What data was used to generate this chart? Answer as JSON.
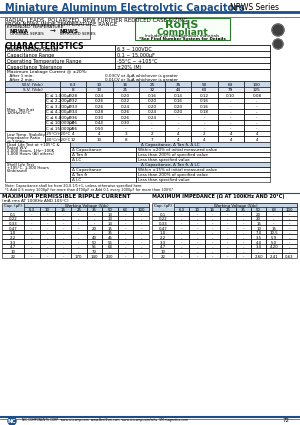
{
  "title": "Miniature Aluminum Electrolytic Capacitors",
  "series": "NRWS Series",
  "subtitle1": "RADIAL LEADS, POLARIZED, NEW FURTHER REDUCED CASE SIZING,",
  "subtitle2": "FROM NRWA WIDE TEMPERATURE RANGE",
  "rohs_line1": "RoHS",
  "rohs_line2": "Compliant",
  "rohs_line3": "Includes all homogeneous materials",
  "rohs_line4": "*See Find Number System for Details",
  "ext_temp": "EXTENDED TEMPERATURE",
  "nrwa_label": "NRWA",
  "nrws_label": "NRWS",
  "nrwa_sub": "ORIGINAL SERIES",
  "nrws_sub": "IMPROVED SERIES",
  "char_title": "CHARACTERISTICS",
  "char_rows": [
    [
      "Rated Voltage Range",
      "6.3 ~ 100VDC"
    ],
    [
      "Capacitance Range",
      "0.1 ~ 15,000μF"
    ],
    [
      "Operating Temperature Range",
      "-55°C ~ +105°C"
    ],
    [
      "Capacitance Tolerance",
      "±20% (M)"
    ]
  ],
  "leakage_label": "Maximum Leakage Current @ ±20%:",
  "leakage_after1min": "After 1 min:",
  "leakage_val1": "0.03CV or 4μA whichever is greater",
  "leakage_after2min": "After 2 min:",
  "leakage_val2": "0.01CV or 3μA whichever is greater",
  "tan_label": "Max. Tan δ at 120Hz/20°C",
  "tan_headers": [
    "W.V. (Vdc)",
    "6.3",
    "10",
    "16",
    "25",
    "35",
    "50",
    "63",
    "100"
  ],
  "tan_sv": [
    "S.V. (Vdc)",
    "8",
    "13",
    "21",
    "32",
    "44",
    "63",
    "79",
    "125"
  ],
  "tan_rows": [
    [
      "C ≤ 1,000μF",
      "0.28",
      "0.24",
      "0.20",
      "0.16",
      "0.14",
      "0.12",
      "0.10",
      "0.08"
    ],
    [
      "C ≤ 2,200μF",
      "0.32",
      "0.26",
      "0.22",
      "0.20",
      "0.16",
      "0.16",
      "-",
      "-"
    ],
    [
      "C ≤ 3,300μF",
      "0.33",
      "0.26",
      "0.24",
      "0.20",
      "0.20",
      "0.16",
      "-",
      "-"
    ],
    [
      "C ≤ 4,700μF",
      "0.34",
      "0.28",
      "0.26",
      "0.24",
      "0.20",
      "0.18",
      "-",
      "-"
    ],
    [
      "C ≤ 6,800μF",
      "0.36",
      "0.30",
      "0.26",
      "0.24",
      "-",
      "-",
      "-",
      "-"
    ],
    [
      "C ≤ 10,000μF",
      "0.46",
      "0.44",
      "0.30",
      "-",
      "-",
      "-",
      "-",
      "-"
    ],
    [
      "C ≤ 15,000μF",
      "0.56",
      "0.50",
      "-",
      "-",
      "-",
      "-",
      "-",
      "-"
    ]
  ],
  "low_temp_label": "Low Temperature Stability\nImpedance Ratio @ 120Hz",
  "low_temp_rows": [
    [
      "-25°C/+20°C",
      "4",
      "4",
      "3",
      "2",
      "4",
      "2",
      "4",
      "4"
    ],
    [
      "-40°C/+20°C",
      "12",
      "10",
      "8",
      "7",
      "4",
      "4",
      "4",
      "4"
    ]
  ],
  "load_life_label": "Load Life Test at +105°C & Rated W.V.\n2,000 Hours, 1Hz ~ 100K (by 5%)\n1,000 Hours (All others)",
  "load_life_rows": [
    [
      "Δ Capacitance",
      "Within ±20% of initial measured value"
    ],
    [
      "Δ Tan δ",
      "Less than 200% of specified value"
    ],
    [
      "Δ LC",
      "Less than specified value"
    ]
  ],
  "shelf_label": "Shelf Life Test\n+105°C, 1,000 Hours\n(Unbiased)",
  "shelf_rows": [
    [
      "Δ Capacitance",
      "Within ±15% of initial measured value"
    ],
    [
      "Δ Tan δ",
      "Less than 200% of specified value"
    ],
    [
      "Δ LC",
      "Less than specified value"
    ]
  ],
  "note": "Note: Capacitance shall be from 20-0.1/1+1, unless otherwise specified here.",
  "note2": "*1 Add 0.5 every 1000μF for more than 4700μF or Add 0.1 every 1000μF for more than 100%*",
  "ripple_title": "MAXIMUM PERMISSIBLE RIPPLE CURRENT",
  "ripple_subtitle": "(mA rms AT 100KHz AND 105°C)",
  "ripple_headers": [
    "Cap. (μF)",
    "6.3",
    "10",
    "16",
    "25",
    "35",
    "50",
    "63",
    "100"
  ],
  "ripple_rows": [
    [
      "0.1",
      "-",
      "-",
      "-",
      "-",
      "-",
      "13",
      "-",
      "-"
    ],
    [
      "0.22",
      "-",
      "-",
      "-",
      "-",
      "-",
      "13",
      "-",
      "-"
    ],
    [
      "0.33",
      "-",
      "-",
      "-",
      "-",
      "-",
      "13",
      "-",
      "-"
    ],
    [
      "0.47",
      "-",
      "-",
      "-",
      "-",
      "20",
      "15",
      "-",
      "-"
    ],
    [
      "1.0",
      "-",
      "-",
      "-",
      "-",
      "-",
      "35",
      "-",
      "-"
    ],
    [
      "2.2",
      "-",
      "-",
      "-",
      "-",
      "40",
      "45",
      "-",
      "-"
    ],
    [
      "3.3",
      "-",
      "-",
      "-",
      "-",
      "50",
      "56",
      "-",
      "-"
    ],
    [
      "4.7",
      "-",
      "-",
      "-",
      "-",
      "55",
      "64",
      "-",
      "-"
    ],
    [
      "10",
      "-",
      "-",
      "-",
      "-",
      "70",
      "-",
      "-",
      "-"
    ],
    [
      "22",
      "-",
      "-",
      "-",
      "170",
      "140",
      "230",
      "-",
      "-"
    ]
  ],
  "impedance_title": "MAXIMUM IMPEDANCE (Ω AT 100KHz AND 20°C)",
  "impedance_headers": [
    "Cap. (μF)",
    "6.3",
    "10",
    "16",
    "25",
    "35",
    "50",
    "63",
    "100"
  ],
  "impedance_rows": [
    [
      "0.1",
      "-",
      "-",
      "-",
      "-",
      "-",
      "20",
      "-",
      "-"
    ],
    [
      "0.22",
      "-",
      "-",
      "-",
      "-",
      "-",
      "20",
      "-",
      "-"
    ],
    [
      "0.33",
      "-",
      "-",
      "-",
      "-",
      "-",
      "15",
      "-",
      "-"
    ],
    [
      "0.47",
      "-",
      "-",
      "-",
      "-",
      "-",
      "10",
      "15",
      "-"
    ],
    [
      "1.0",
      "-",
      "-",
      "-",
      "-",
      "-",
      "7.0",
      "10.5",
      "-"
    ],
    [
      "2.2",
      "-",
      "-",
      "-",
      "-",
      "-",
      "3.5",
      "5.9",
      "-"
    ],
    [
      "3.3",
      "-",
      "-",
      "-",
      "-",
      "-",
      "4.0",
      "5.0",
      "-"
    ],
    [
      "4.7",
      "-",
      "-",
      "-",
      "-",
      "-",
      "3.0",
      "4.20",
      "-"
    ],
    [
      "10",
      "-",
      "-",
      "-",
      "-",
      "-",
      "-",
      "-",
      "-"
    ],
    [
      "22",
      "-",
      "-",
      "-",
      "-",
      "-",
      "2.60",
      "2.41",
      "0.63"
    ]
  ],
  "blue_color": "#1a4f8a",
  "rohs_green": "#2a7a2a",
  "table_header_bg": "#c8d8e8",
  "bg_color": "#ffffff",
  "nc_logo_text": "NC",
  "footer_text": "NIC COMPONENTS CORP.  www.niccomp.com  www.BestEsm.com  www.niccomp.com/rohs  SM magnetics.com",
  "page_num": "72"
}
